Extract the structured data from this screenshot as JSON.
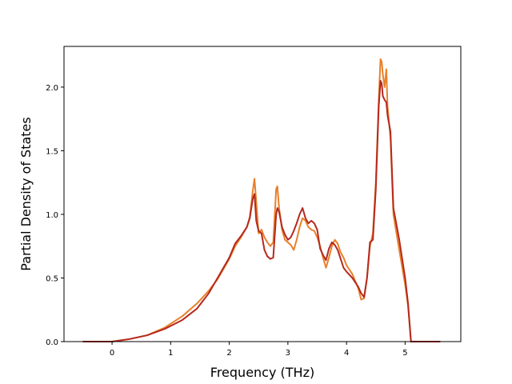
{
  "chart_data": {
    "type": "line",
    "title": "",
    "xlabel": "Frequency (THz)",
    "ylabel": "Partial Density of States",
    "xlim": [
      -0.82,
      5.95
    ],
    "ylim": [
      0,
      2.32
    ],
    "xticks": [
      0,
      1,
      2,
      3,
      4,
      5
    ],
    "yticks": [
      0.0,
      0.5,
      1.0,
      1.5,
      2.0
    ],
    "xtick_labels": [
      "0",
      "1",
      "2",
      "3",
      "4",
      "5"
    ],
    "ytick_labels": [
      "0.0",
      "0.5",
      "1.0",
      "1.5",
      "2.0"
    ],
    "grid": false,
    "legend": "none",
    "series": [
      {
        "color": "#e8802a",
        "x": [
          -0.5,
          0.0,
          0.3,
          0.6,
          0.9,
          1.2,
          1.45,
          1.65,
          1.8,
          2.0,
          2.1,
          2.2,
          2.3,
          2.35,
          2.4,
          2.43,
          2.46,
          2.5,
          2.55,
          2.6,
          2.65,
          2.7,
          2.75,
          2.8,
          2.82,
          2.85,
          2.9,
          2.95,
          3.0,
          3.05,
          3.1,
          3.15,
          3.2,
          3.25,
          3.3,
          3.35,
          3.4,
          3.45,
          3.5,
          3.55,
          3.6,
          3.65,
          3.7,
          3.75,
          3.8,
          3.85,
          3.9,
          3.95,
          4.0,
          4.1,
          4.2,
          4.25,
          4.3,
          4.35,
          4.4,
          4.45,
          4.5,
          4.55,
          4.58,
          4.6,
          4.62,
          4.65,
          4.68,
          4.7,
          4.75,
          4.8,
          4.9,
          5.0,
          5.05,
          5.1,
          5.2,
          5.6
        ],
        "y": [
          0.0,
          0.0,
          0.02,
          0.05,
          0.11,
          0.2,
          0.3,
          0.4,
          0.49,
          0.65,
          0.75,
          0.82,
          0.9,
          0.98,
          1.18,
          1.28,
          1.1,
          0.85,
          0.88,
          0.82,
          0.78,
          0.75,
          0.78,
          1.2,
          1.22,
          1.05,
          0.88,
          0.8,
          0.78,
          0.76,
          0.72,
          0.8,
          0.9,
          0.97,
          0.95,
          0.9,
          0.88,
          0.87,
          0.82,
          0.75,
          0.66,
          0.58,
          0.66,
          0.75,
          0.8,
          0.77,
          0.7,
          0.66,
          0.6,
          0.53,
          0.42,
          0.33,
          0.34,
          0.5,
          0.75,
          0.85,
          1.25,
          1.9,
          2.22,
          2.2,
          2.1,
          2.0,
          2.14,
          1.85,
          1.6,
          1.0,
          0.72,
          0.45,
          0.28,
          0.0,
          0.0,
          0.0
        ]
      },
      {
        "color": "#b5291e",
        "x": [
          -0.5,
          0.0,
          0.3,
          0.6,
          0.9,
          1.2,
          1.45,
          1.65,
          1.8,
          2.0,
          2.1,
          2.2,
          2.3,
          2.35,
          2.4,
          2.43,
          2.46,
          2.5,
          2.55,
          2.6,
          2.65,
          2.7,
          2.75,
          2.8,
          2.82,
          2.85,
          2.9,
          2.95,
          3.0,
          3.05,
          3.1,
          3.15,
          3.2,
          3.25,
          3.3,
          3.35,
          3.4,
          3.45,
          3.5,
          3.55,
          3.6,
          3.65,
          3.7,
          3.75,
          3.8,
          3.85,
          3.9,
          3.95,
          4.0,
          4.1,
          4.2,
          4.25,
          4.3,
          4.35,
          4.4,
          4.45,
          4.5,
          4.55,
          4.58,
          4.6,
          4.62,
          4.65,
          4.68,
          4.7,
          4.75,
          4.8,
          4.9,
          5.0,
          5.05,
          5.1,
          5.2,
          5.6
        ],
        "y": [
          0.0,
          0.0,
          0.02,
          0.05,
          0.1,
          0.17,
          0.26,
          0.38,
          0.5,
          0.66,
          0.77,
          0.83,
          0.9,
          0.97,
          1.12,
          1.16,
          0.95,
          0.87,
          0.85,
          0.72,
          0.67,
          0.65,
          0.66,
          1.0,
          1.05,
          1.02,
          0.9,
          0.84,
          0.8,
          0.82,
          0.87,
          0.93,
          1.0,
          1.05,
          0.97,
          0.93,
          0.95,
          0.93,
          0.88,
          0.73,
          0.68,
          0.64,
          0.73,
          0.78,
          0.76,
          0.72,
          0.65,
          0.58,
          0.55,
          0.5,
          0.43,
          0.38,
          0.35,
          0.5,
          0.78,
          0.8,
          1.2,
          1.85,
          2.05,
          2.03,
          1.93,
          1.9,
          1.88,
          1.78,
          1.65,
          1.05,
          0.8,
          0.5,
          0.3,
          0.0,
          0.0,
          0.0
        ]
      }
    ]
  }
}
